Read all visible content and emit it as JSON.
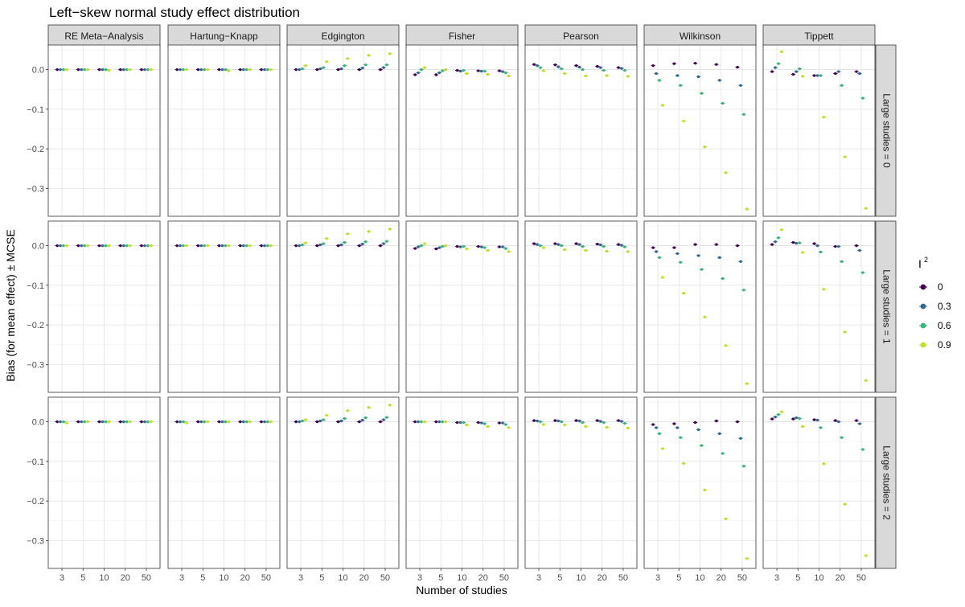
{
  "chart_data": {
    "type": "scatter",
    "title": "Left−skew normal study effect distribution",
    "xlabel": "Number of studies",
    "ylabel": "Bias (for mean effect) ± MCSE",
    "columns": [
      "RE Meta−Analysis",
      "Hartung−Knapp",
      "Edgington",
      "Fisher",
      "Pearson",
      "Wilkinson",
      "Tippett"
    ],
    "rows": [
      "Large studies = 0",
      "Large studies = 1",
      "Large studies = 2"
    ],
    "x_categories": [
      "3",
      "5",
      "10",
      "20",
      "50"
    ],
    "y_ticks": [
      0.0,
      -0.1,
      -0.2,
      -0.3
    ],
    "y_tick_labels": [
      "0.0",
      "−0.1",
      "−0.2",
      "−0.3"
    ],
    "ylim": [
      -0.37,
      0.062
    ],
    "grid": true,
    "legend": {
      "title": "I",
      "title_superscript": "2",
      "position": "right",
      "items": [
        {
          "label": "0",
          "color": "#440154"
        },
        {
          "label": "0.3",
          "color": "#31688e"
        },
        {
          "label": "0.6",
          "color": "#35b779"
        },
        {
          "label": "0.9",
          "color": "#c2df23"
        }
      ]
    },
    "panels": [
      [
        [
          [
            0,
            0,
            0,
            0
          ],
          [
            0,
            0,
            0,
            0
          ],
          [
            0,
            0,
            0,
            -0.002
          ],
          [
            0,
            0,
            0,
            0
          ],
          [
            0,
            0,
            0,
            0
          ]
        ],
        [
          [
            0,
            0,
            0,
            0
          ],
          [
            0,
            0,
            0,
            0
          ],
          [
            0,
            0,
            0,
            -0.003
          ],
          [
            0,
            0,
            0,
            0
          ],
          [
            0,
            0,
            0,
            0
          ]
        ],
        [
          [
            0,
            0,
            0.002,
            0.01
          ],
          [
            0,
            0.002,
            0.005,
            0.02
          ],
          [
            0,
            0.002,
            0.01,
            0.028
          ],
          [
            0,
            0.004,
            0.012,
            0.036
          ],
          [
            0,
            0.005,
            0.012,
            0.04
          ]
        ],
        [
          [
            -0.013,
            -0.008,
            0,
            0.005
          ],
          [
            -0.013,
            -0.008,
            -0.003,
            0
          ],
          [
            -0.002,
            -0.004,
            -0.002,
            -0.01
          ],
          [
            -0.003,
            -0.004,
            -0.004,
            -0.012
          ],
          [
            -0.003,
            -0.005,
            -0.008,
            -0.016
          ]
        ],
        [
          [
            0.013,
            0.01,
            0.005,
            -0.003
          ],
          [
            0.012,
            0.007,
            0.002,
            -0.01
          ],
          [
            0.01,
            0.006,
            0,
            -0.016
          ],
          [
            0.008,
            0.005,
            -0.002,
            -0.015
          ],
          [
            0.005,
            0.003,
            -0.002,
            -0.017
          ]
        ],
        [
          [
            0.01,
            -0.01,
            -0.027,
            -0.09
          ],
          [
            0.015,
            -0.015,
            -0.04,
            -0.13
          ],
          [
            0.016,
            -0.018,
            -0.06,
            -0.195
          ],
          [
            0.013,
            -0.027,
            -0.085,
            -0.26
          ],
          [
            0.006,
            -0.04,
            -0.113,
            -0.352
          ]
        ],
        [
          [
            -0.005,
            0.005,
            0.015,
            0.045
          ],
          [
            -0.012,
            -0.005,
            0.002,
            -0.017
          ],
          [
            -0.015,
            -0.015,
            -0.015,
            -0.12
          ],
          [
            -0.01,
            -0.005,
            -0.04,
            -0.22
          ],
          [
            -0.005,
            -0.01,
            -0.072,
            -0.35
          ]
        ]
      ],
      [
        [
          [
            0,
            0,
            0,
            0
          ],
          [
            0,
            0,
            0,
            0
          ],
          [
            0,
            0,
            0,
            0
          ],
          [
            0,
            0,
            0,
            0
          ],
          [
            0,
            0,
            0,
            0
          ]
        ],
        [
          [
            0,
            0,
            0,
            0
          ],
          [
            0,
            0,
            0,
            0
          ],
          [
            0,
            0,
            0,
            0
          ],
          [
            0,
            0,
            0,
            0
          ],
          [
            0,
            0,
            0,
            0
          ]
        ],
        [
          [
            0,
            0,
            0.002,
            0.007
          ],
          [
            0,
            0.002,
            0.005,
            0.018
          ],
          [
            0,
            0.002,
            0.008,
            0.03
          ],
          [
            0,
            0.004,
            0.01,
            0.036
          ],
          [
            0,
            0.005,
            0.011,
            0.042
          ]
        ],
        [
          [
            -0.007,
            -0.003,
            0,
            0.005
          ],
          [
            -0.008,
            -0.005,
            -0.002,
            0
          ],
          [
            -0.002,
            -0.003,
            -0.002,
            -0.008
          ],
          [
            -0.002,
            -0.003,
            -0.005,
            -0.012
          ],
          [
            -0.003,
            -0.003,
            -0.007,
            -0.015
          ]
        ],
        [
          [
            0.005,
            0.003,
            0,
            -0.005
          ],
          [
            0.005,
            0.003,
            0,
            -0.01
          ],
          [
            0.005,
            0.003,
            -0.002,
            -0.012
          ],
          [
            0.004,
            0.002,
            -0.002,
            -0.014
          ],
          [
            0.003,
            0.001,
            -0.003,
            -0.015
          ]
        ],
        [
          [
            -0.005,
            -0.015,
            -0.03,
            -0.08
          ],
          [
            -0.005,
            -0.02,
            -0.042,
            -0.12
          ],
          [
            0.003,
            -0.025,
            -0.06,
            -0.18
          ],
          [
            0.003,
            -0.03,
            -0.083,
            -0.252
          ],
          [
            0,
            -0.04,
            -0.112,
            -0.348
          ]
        ],
        [
          [
            0.003,
            0.01,
            0.02,
            0.04
          ],
          [
            0.008,
            0.006,
            0.007,
            -0.017
          ],
          [
            0.005,
            0,
            -0.016,
            -0.11
          ],
          [
            -0.002,
            -0.002,
            -0.04,
            -0.218
          ],
          [
            0,
            -0.012,
            -0.068,
            -0.34
          ]
        ]
      ],
      [
        [
          [
            0,
            0,
            0,
            -0.003
          ],
          [
            0,
            0,
            0,
            0
          ],
          [
            0,
            0,
            0,
            0
          ],
          [
            0,
            0,
            0,
            0
          ],
          [
            0,
            0,
            0,
            0
          ]
        ],
        [
          [
            0,
            0,
            0,
            -0.003
          ],
          [
            0,
            0,
            0,
            0
          ],
          [
            0,
            0,
            0,
            0
          ],
          [
            0,
            0,
            0,
            0
          ],
          [
            0,
            0,
            0,
            0
          ]
        ],
        [
          [
            0,
            0,
            0.002,
            0.005
          ],
          [
            0,
            0.002,
            0.005,
            0.016
          ],
          [
            0,
            0.002,
            0.008,
            0.028
          ],
          [
            0,
            0.004,
            0.01,
            0.036
          ],
          [
            0,
            0.005,
            0.011,
            0.042
          ]
        ],
        [
          [
            0,
            0,
            0,
            0
          ],
          [
            0,
            0,
            0,
            0
          ],
          [
            -0.002,
            -0.002,
            -0.002,
            -0.008
          ],
          [
            -0.002,
            -0.003,
            -0.005,
            -0.012
          ],
          [
            -0.003,
            -0.003,
            -0.007,
            -0.015
          ]
        ],
        [
          [
            0.003,
            0.002,
            0,
            -0.007
          ],
          [
            0.003,
            0.002,
            0,
            -0.008
          ],
          [
            0.003,
            0.002,
            -0.002,
            -0.012
          ],
          [
            0.003,
            0.001,
            -0.002,
            -0.014
          ],
          [
            0.003,
            0.001,
            -0.004,
            -0.016
          ]
        ],
        [
          [
            -0.007,
            -0.015,
            -0.03,
            -0.068
          ],
          [
            -0.005,
            -0.015,
            -0.04,
            -0.105
          ],
          [
            -0.002,
            -0.02,
            -0.06,
            -0.172
          ],
          [
            0.002,
            -0.03,
            -0.08,
            -0.245
          ],
          [
            0,
            -0.042,
            -0.112,
            -0.345
          ]
        ],
        [
          [
            0.007,
            0.012,
            0.018,
            0.025
          ],
          [
            0.007,
            0.01,
            0.008,
            -0.012
          ],
          [
            0.005,
            0.004,
            -0.015,
            -0.106
          ],
          [
            0.003,
            0,
            -0.04,
            -0.208
          ],
          [
            0.003,
            -0.005,
            -0.07,
            -0.338
          ]
        ]
      ]
    ]
  }
}
